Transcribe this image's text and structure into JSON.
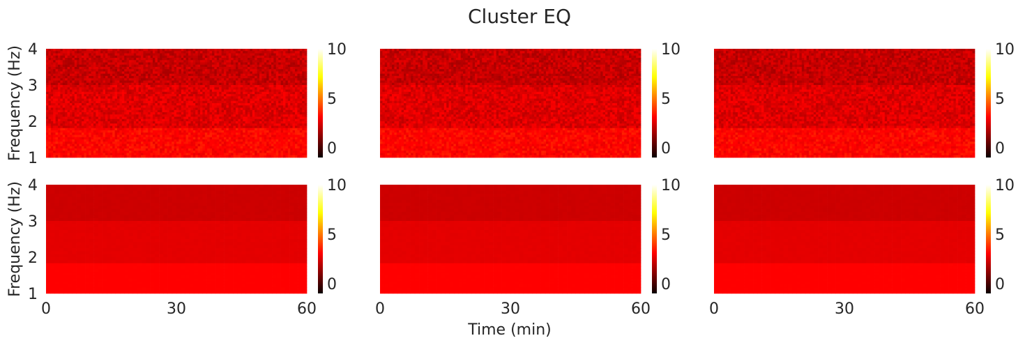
{
  "chart_data": {
    "type": "heatmap",
    "title": "Cluster EQ",
    "xlabel": "Time (min)",
    "ylabel": "Frequency (Hz)",
    "xlim": [
      0,
      60
    ],
    "ylim": [
      1,
      4
    ],
    "xticks": [
      "0",
      "30",
      "60"
    ],
    "yticks": [
      "1",
      "2",
      "3",
      "4"
    ],
    "colormap": "hot",
    "colorbar": {
      "vmin": -1,
      "vmax": 10,
      "ticks": [
        "0",
        "5",
        "10"
      ]
    },
    "layout": {
      "rows": 2,
      "cols": 3
    },
    "panels": [
      {
        "row": 1,
        "col": 1,
        "texture": "noisy",
        "values_by_band": [
          {
            "freq_range": [
              1,
              1.8
            ],
            "mean_value": 3.0
          },
          {
            "freq_range": [
              1.8,
              3.0
            ],
            "mean_value": 2.3
          },
          {
            "freq_range": [
              3.0,
              4.0
            ],
            "mean_value": 1.9
          }
        ]
      },
      {
        "row": 1,
        "col": 2,
        "texture": "noisy",
        "values_by_band": [
          {
            "freq_range": [
              1,
              1.8
            ],
            "mean_value": 3.0
          },
          {
            "freq_range": [
              1.8,
              3.0
            ],
            "mean_value": 2.3
          },
          {
            "freq_range": [
              3.0,
              4.0
            ],
            "mean_value": 1.9
          }
        ]
      },
      {
        "row": 1,
        "col": 3,
        "texture": "noisy",
        "values_by_band": [
          {
            "freq_range": [
              1,
              1.8
            ],
            "mean_value": 3.0
          },
          {
            "freq_range": [
              1.8,
              3.0
            ],
            "mean_value": 2.3
          },
          {
            "freq_range": [
              3.0,
              4.0
            ],
            "mean_value": 1.9
          }
        ]
      },
      {
        "row": 2,
        "col": 1,
        "texture": "smooth",
        "values_by_band": [
          {
            "freq_range": [
              1,
              1.8
            ],
            "mean_value": 3.0
          },
          {
            "freq_range": [
              1.8,
              3.0
            ],
            "mean_value": 2.4
          },
          {
            "freq_range": [
              3.0,
              4.0
            ],
            "mean_value": 2.0
          }
        ]
      },
      {
        "row": 2,
        "col": 2,
        "texture": "smooth",
        "values_by_band": [
          {
            "freq_range": [
              1,
              1.8
            ],
            "mean_value": 3.0
          },
          {
            "freq_range": [
              1.8,
              3.0
            ],
            "mean_value": 2.4
          },
          {
            "freq_range": [
              3.0,
              4.0
            ],
            "mean_value": 2.0
          }
        ]
      },
      {
        "row": 2,
        "col": 3,
        "texture": "smooth",
        "values_by_band": [
          {
            "freq_range": [
              1,
              1.8
            ],
            "mean_value": 3.0
          },
          {
            "freq_range": [
              1.8,
              3.0
            ],
            "mean_value": 2.4
          },
          {
            "freq_range": [
              3.0,
              4.0
            ],
            "mean_value": 2.0
          }
        ]
      }
    ]
  }
}
